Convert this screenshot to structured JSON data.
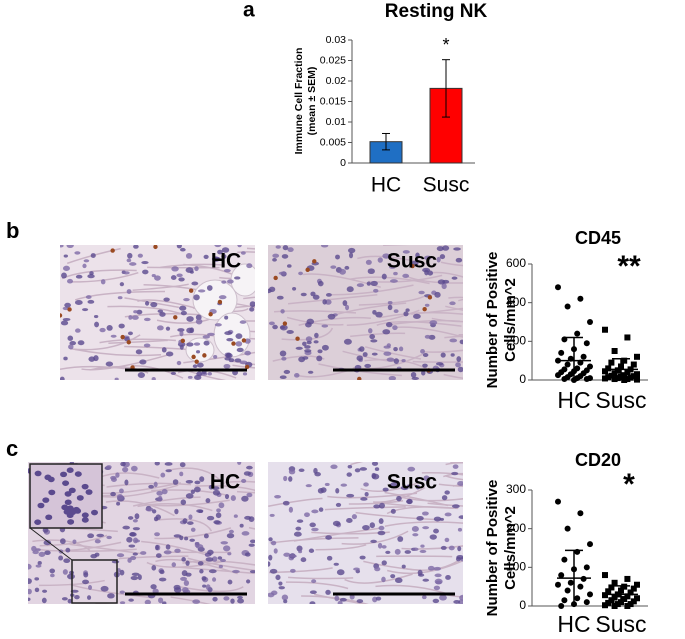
{
  "panels": [
    "a",
    "b",
    "c"
  ],
  "images": [
    {
      "label": "HC"
    },
    {
      "label": "Susc"
    },
    {
      "label": "HC"
    },
    {
      "label": "Susc"
    }
  ],
  "chart_data": [
    {
      "type": "bar",
      "title": "Resting NK",
      "ylabel": [
        "Immune Cell Fraction",
        "(mean ± SEM)"
      ],
      "categories": [
        "HC",
        "Susc"
      ],
      "values": [
        0.0052,
        0.0182
      ],
      "errors": [
        0.002,
        0.007
      ],
      "colors": [
        "#1f6fc4",
        "#ff0000"
      ],
      "ylim": [
        0,
        0.03
      ],
      "yticks": [
        0,
        0.005,
        0.01,
        0.015,
        0.02,
        0.025,
        0.03
      ],
      "annotation": "*"
    },
    {
      "type": "dotplot",
      "title": "CD45",
      "ylabel": [
        "Number of Positive",
        "Cells/mm^2"
      ],
      "categories": [
        "HC",
        "Susc"
      ],
      "groups": [
        {
          "marker": "circle",
          "mean": 100,
          "sd": 120,
          "values": [
            480,
            420,
            380,
            300,
            240,
            210,
            190,
            160,
            140,
            120,
            110,
            100,
            90,
            80,
            70,
            60,
            55,
            50,
            45,
            40,
            35,
            30,
            25,
            20,
            15,
            10,
            10,
            5,
            5,
            0
          ]
        },
        {
          "marker": "square",
          "mean": 55,
          "sd": 55,
          "values": [
            260,
            220,
            150,
            120,
            100,
            90,
            80,
            70,
            60,
            55,
            50,
            45,
            40,
            35,
            30,
            25,
            22,
            20,
            18,
            15,
            12,
            10,
            8,
            5,
            5,
            2,
            0
          ]
        }
      ],
      "ylim": [
        0,
        600
      ],
      "yticks": [
        0,
        200,
        400,
        600
      ],
      "annotation": "**"
    },
    {
      "type": "dotplot",
      "title": "CD20",
      "ylabel": [
        "Number of Positive",
        "Cells/mm^2"
      ],
      "categories": [
        "HC",
        "Susc"
      ],
      "groups": [
        {
          "marker": "circle",
          "mean": 72,
          "sd": 72,
          "values": [
            270,
            240,
            200,
            160,
            140,
            120,
            100,
            95,
            80,
            70,
            60,
            55,
            50,
            40,
            30,
            20,
            15,
            10,
            5,
            0
          ]
        },
        {
          "marker": "square",
          "mean": 30,
          "sd": 22,
          "values": [
            80,
            70,
            60,
            55,
            50,
            48,
            45,
            40,
            38,
            35,
            30,
            28,
            25,
            22,
            20,
            18,
            15,
            12,
            10,
            8,
            5,
            5,
            2,
            0,
            0
          ]
        }
      ],
      "ylim": [
        0,
        300
      ],
      "yticks": [
        0,
        100,
        200,
        300
      ],
      "annotation": "*"
    }
  ]
}
